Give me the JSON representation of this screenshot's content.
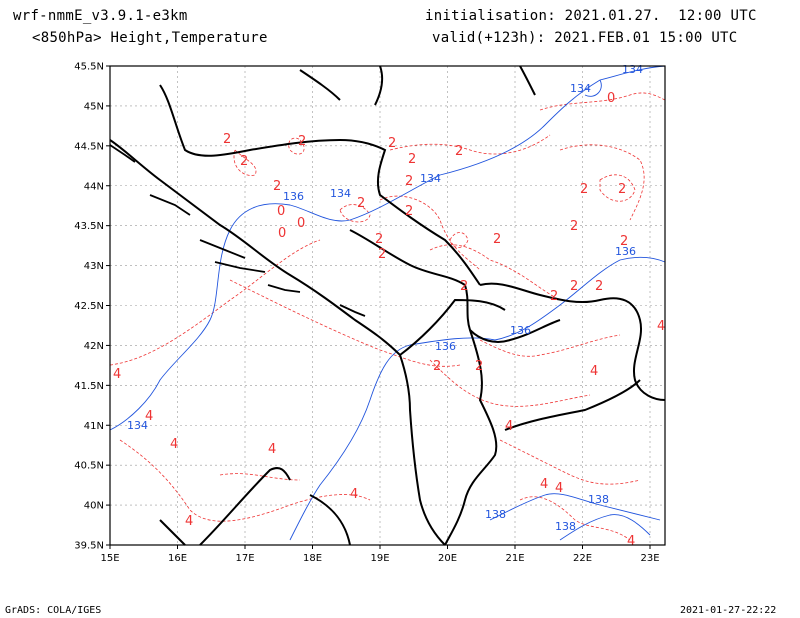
{
  "header": {
    "model": "wrf-nmmE_v3.9.1-e3km",
    "field": "<850hPa> Height,Temperature",
    "init": "initialisation: 2021.01.27.  12:00 UTC",
    "valid": "valid(+123h): 2021.FEB.01 15:00 UTC"
  },
  "axes": {
    "lon_labels": [
      "15E",
      "16E",
      "17E",
      "18E",
      "19E",
      "20E",
      "21E",
      "22E",
      "23E"
    ],
    "lat_labels": [
      "45.5N",
      "45N",
      "44.5N",
      "44N",
      "43.5N",
      "43N",
      "42.5N",
      "42N",
      "41.5N",
      "41N",
      "40.5N",
      "40N",
      "39.5N"
    ]
  },
  "footer": {
    "left": "GrADS: COLA/IGES",
    "right": "2021-01-27-22:22"
  },
  "colors": {
    "height_contour": "#2255dd",
    "temperature_contour": "#ee3333",
    "coastline": "#000000",
    "grid": "#999999"
  },
  "contour_labels": {
    "height": [
      "134",
      "134",
      "134",
      "134",
      "136",
      "136",
      "136",
      "136",
      "138",
      "138",
      "138",
      "134"
    ],
    "temperature": [
      "2",
      "2",
      "2",
      "2",
      "2",
      "2",
      "2",
      "2",
      "2",
      "2",
      "2",
      "2",
      "2",
      "2",
      "2",
      "2",
      "2",
      "2",
      "2",
      "2",
      "2",
      "2",
      "2",
      "0",
      "0",
      "0",
      "0",
      "4",
      "4",
      "4",
      "4",
      "4",
      "4",
      "4",
      "4",
      "4",
      "4",
      "4",
      "4"
    ]
  }
}
